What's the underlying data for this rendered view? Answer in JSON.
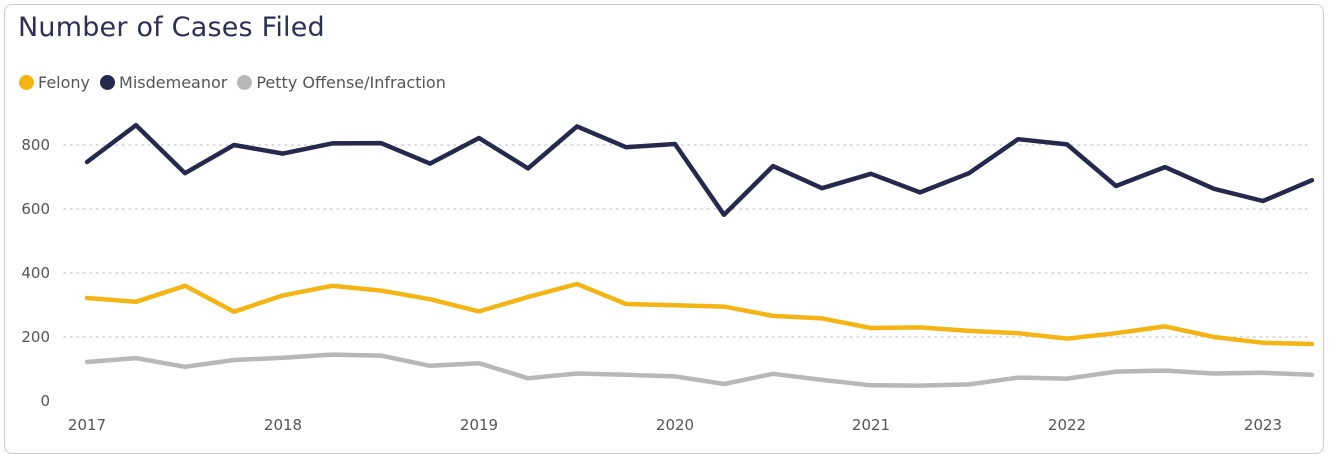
{
  "colors": {
    "felony": "#f4b414",
    "misdemeanor": "#26284d",
    "petty": "#b8b8b8",
    "grid": "#d0d0d0"
  },
  "chart_data": {
    "type": "line",
    "title": "Number of Cases Filed",
    "xlabel": "",
    "ylabel": "",
    "ylim": [
      0,
      900
    ],
    "yticks": [
      0,
      200,
      400,
      600,
      800
    ],
    "xticks": [
      "2017",
      "2018",
      "2019",
      "2020",
      "2021",
      "2022",
      "2023"
    ],
    "legend_position": "top-left",
    "grid": true,
    "x": [
      "2017-Q1",
      "2017-Q2",
      "2017-Q3",
      "2017-Q4",
      "2018-Q1",
      "2018-Q2",
      "2018-Q3",
      "2018-Q4",
      "2019-Q1",
      "2019-Q2",
      "2019-Q3",
      "2019-Q4",
      "2020-Q1",
      "2020-Q2",
      "2020-Q3",
      "2020-Q4",
      "2021-Q1",
      "2021-Q2",
      "2021-Q3",
      "2021-Q4",
      "2022-Q1",
      "2022-Q2",
      "2022-Q3",
      "2022-Q4",
      "2023-Q1",
      "2023-Q2"
    ],
    "series": [
      {
        "name": "Felony",
        "color": "#f4b414",
        "values": [
          322,
          310,
          360,
          279,
          330,
          360,
          345,
          318,
          280,
          325,
          366,
          303,
          299,
          295,
          266,
          258,
          228,
          230,
          219,
          212,
          195,
          212,
          233,
          200,
          182,
          178
        ]
      },
      {
        "name": "Misdemeanor",
        "color": "#26284d",
        "values": [
          747,
          862,
          712,
          800,
          773,
          805,
          806,
          742,
          822,
          727,
          858,
          793,
          803,
          582,
          734,
          665,
          710,
          652,
          712,
          818,
          802,
          672,
          731,
          663,
          625,
          690
        ]
      },
      {
        "name": "Petty Offense/Infraction",
        "color": "#b8b8b8",
        "values": [
          122,
          134,
          107,
          128,
          135,
          145,
          142,
          110,
          118,
          71,
          86,
          82,
          77,
          53,
          85,
          66,
          49,
          48,
          52,
          73,
          70,
          92,
          95,
          86,
          88,
          82
        ]
      }
    ]
  }
}
